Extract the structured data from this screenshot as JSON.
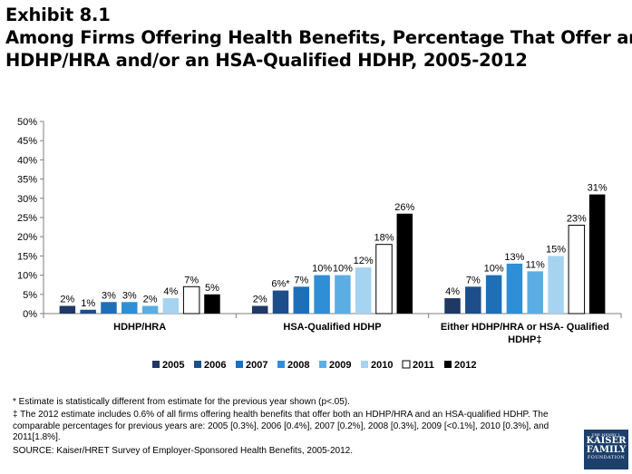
{
  "title": {
    "line1": "Exhibit 8.1",
    "line2": "Among Firms Offering Health Benefits, Percentage That Offer an",
    "line3": "HDHP/HRA and/or an HSA-Qualified HDHP, 2005-2012"
  },
  "chart_data": {
    "type": "bar",
    "categories": [
      "HDHP/HRA",
      "HSA-Qualified HDHP",
      "Either HDHP/HRA or HSA- Qualified HDHP‡"
    ],
    "category_label_lines": [
      [
        "HDHP/HRA"
      ],
      [
        "HSA-Qualified HDHP"
      ],
      [
        "Either HDHP/HRA or HSA- Qualified",
        "HDHP‡"
      ]
    ],
    "series": [
      {
        "name": "2005",
        "color": "#1f3864",
        "values": [
          2,
          2,
          4
        ],
        "labels": [
          "2%",
          "2%",
          "4%"
        ]
      },
      {
        "name": "2006",
        "color": "#1d4e89",
        "values": [
          1,
          6,
          7
        ],
        "labels": [
          "1%",
          "6%*",
          "7%"
        ]
      },
      {
        "name": "2007",
        "color": "#1f6fb8",
        "values": [
          3,
          7,
          10
        ],
        "labels": [
          "3%",
          "7%",
          "10%"
        ]
      },
      {
        "name": "2008",
        "color": "#2e8fd6",
        "values": [
          3,
          10,
          13
        ],
        "labels": [
          "3%",
          "10%",
          "13%"
        ]
      },
      {
        "name": "2009",
        "color": "#5aaee3",
        "values": [
          2,
          10,
          11
        ],
        "labels": [
          "2%",
          "10%",
          "11%"
        ]
      },
      {
        "name": "2010",
        "color": "#a6d3f0",
        "values": [
          4,
          12,
          15
        ],
        "labels": [
          "4%",
          "12%",
          "15%"
        ]
      },
      {
        "name": "2011",
        "color": "#ffffff",
        "values": [
          7,
          18,
          23
        ],
        "labels": [
          "7%",
          "18%",
          "23%"
        ]
      },
      {
        "name": "2012",
        "color": "#000000",
        "values": [
          5,
          26,
          31
        ],
        "labels": [
          "5%",
          "26%",
          "31%"
        ]
      }
    ],
    "yticks": [
      "0%",
      "5%",
      "10%",
      "15%",
      "20%",
      "25%",
      "30%",
      "35%",
      "40%",
      "45%",
      "50%"
    ],
    "ylim": [
      0,
      50
    ],
    "legend_position": "bottom",
    "grid": false
  },
  "footnotes": {
    "note1": "* Estimate is statistically different from estimate for the previous year shown (p<.05).",
    "note2": "‡ The 2012 estimate includes 0.6% of all firms offering health benefits that offer both an HDHP/HRA and an HSA-qualified HDHP.  The comparable percentages for previous years are: 2005 [0.3%], 2006 [0.4%], 2007 [0.2%], 2008 [0.3%], 2009 [<0.1%], 2010 [0.3%], and 2011[1.8%].",
    "source": "SOURCE:  Kaiser/HRET Survey of Employer-Sponsored Health Benefits, 2005-2012."
  },
  "logo": {
    "line0": "THE HENRY J.",
    "line1": "KAISER",
    "line2": "FAMILY",
    "line3": "FOUNDATION"
  }
}
